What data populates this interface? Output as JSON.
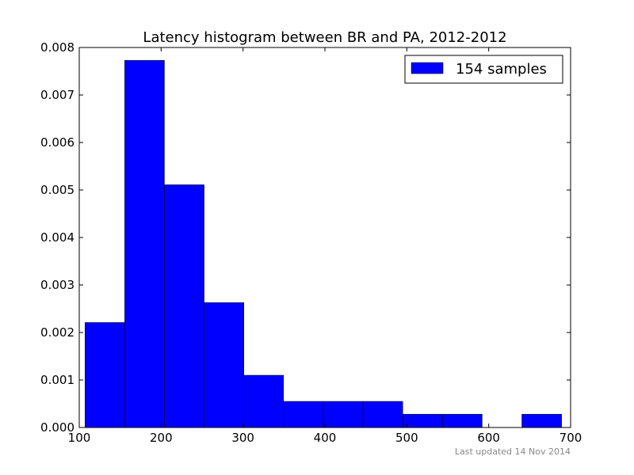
{
  "chart_data": {
    "type": "bar",
    "title": "Latency histogram between BR and PA, 2012-2012",
    "xlabel": "",
    "ylabel": "",
    "xlim": [
      100,
      700
    ],
    "ylim": [
      0,
      0.008
    ],
    "x_ticks": [
      "100",
      "200",
      "300",
      "400",
      "500",
      "600",
      "700"
    ],
    "y_ticks": [
      "0.000",
      "0.001",
      "0.002",
      "0.003",
      "0.004",
      "0.005",
      "0.006",
      "0.007",
      "0.008"
    ],
    "grid": false,
    "legend_position": "top-right",
    "series": [
      {
        "name": "154 samples",
        "color": "#0000ff",
        "bins": [
          {
            "start": 107,
            "end": 155.5,
            "value": 0.00221
          },
          {
            "start": 155.5,
            "end": 204,
            "value": 0.00773
          },
          {
            "start": 204,
            "end": 252.5,
            "value": 0.00511
          },
          {
            "start": 252.5,
            "end": 301,
            "value": 0.00263
          },
          {
            "start": 301,
            "end": 349.5,
            "value": 0.0011
          },
          {
            "start": 349.5,
            "end": 398,
            "value": 0.00055
          },
          {
            "start": 398,
            "end": 446.5,
            "value": 0.00055
          },
          {
            "start": 446.5,
            "end": 495,
            "value": 0.00055
          },
          {
            "start": 495,
            "end": 543.5,
            "value": 0.00028
          },
          {
            "start": 543.5,
            "end": 592,
            "value": 0.00028
          },
          {
            "start": 592,
            "end": 640.5,
            "value": 0
          },
          {
            "start": 640.5,
            "end": 689,
            "value": 0.00028
          }
        ]
      }
    ],
    "footer": "Last updated 14 Nov 2014"
  }
}
